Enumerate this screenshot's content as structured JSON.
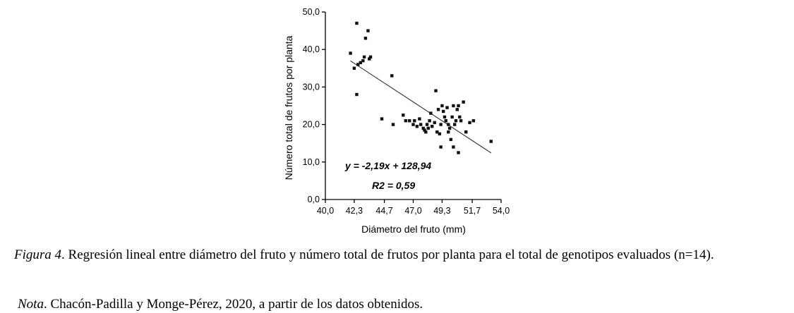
{
  "chart_data": {
    "type": "scatter",
    "xlabel": "Diámetro del fruto (mm)",
    "ylabel": "Número total de frutos por planta",
    "xlim": [
      40.0,
      54.0
    ],
    "ylim": [
      0.0,
      50.0
    ],
    "xticks": [
      "40,0",
      "42,3",
      "44,7",
      "47,0",
      "49,3",
      "51,7",
      "54,0"
    ],
    "xtick_values": [
      40.0,
      42.3,
      44.7,
      47.0,
      49.3,
      51.7,
      54.0
    ],
    "yticks": [
      "0,0",
      "10,0",
      "20,0",
      "30,0",
      "40,0",
      "50,0"
    ],
    "ytick_values": [
      0,
      10,
      20,
      30,
      40,
      50
    ],
    "points": [
      [
        42.0,
        39.0
      ],
      [
        42.3,
        35.0
      ],
      [
        42.5,
        47.0
      ],
      [
        42.5,
        28.0
      ],
      [
        42.6,
        36.0
      ],
      [
        42.8,
        36.5
      ],
      [
        43.0,
        37.0
      ],
      [
        43.1,
        38.0
      ],
      [
        43.2,
        43.0
      ],
      [
        43.4,
        45.0
      ],
      [
        43.5,
        37.5
      ],
      [
        43.6,
        38.0
      ],
      [
        45.3,
        33.0
      ],
      [
        44.5,
        21.5
      ],
      [
        45.4,
        20.0
      ],
      [
        46.2,
        22.5
      ],
      [
        46.4,
        21.0
      ],
      [
        46.7,
        21.0
      ],
      [
        47.0,
        20.0
      ],
      [
        47.1,
        21.0
      ],
      [
        47.3,
        19.5
      ],
      [
        47.5,
        21.5
      ],
      [
        47.6,
        20.0
      ],
      [
        47.8,
        19.0
      ],
      [
        47.9,
        18.5
      ],
      [
        48.0,
        18.0
      ],
      [
        48.1,
        20.0
      ],
      [
        48.2,
        19.0
      ],
      [
        48.3,
        21.0
      ],
      [
        48.4,
        23.0
      ],
      [
        48.5,
        19.5
      ],
      [
        48.7,
        20.5
      ],
      [
        48.9,
        18.0
      ],
      [
        49.0,
        24.0
      ],
      [
        49.1,
        17.5
      ],
      [
        49.2,
        20.0
      ],
      [
        49.3,
        25.0
      ],
      [
        49.4,
        23.5
      ],
      [
        49.5,
        22.0
      ],
      [
        49.6,
        21.0
      ],
      [
        49.7,
        24.5
      ],
      [
        49.8,
        20.0
      ],
      [
        49.9,
        19.0
      ],
      [
        50.0,
        16.0
      ],
      [
        50.1,
        22.0
      ],
      [
        50.2,
        25.0
      ],
      [
        50.3,
        20.0
      ],
      [
        50.4,
        21.0
      ],
      [
        50.5,
        24.0
      ],
      [
        50.6,
        25.0
      ],
      [
        50.7,
        22.0
      ],
      [
        50.8,
        21.0
      ],
      [
        51.0,
        26.0
      ],
      [
        51.2,
        18.0
      ],
      [
        51.5,
        20.5
      ],
      [
        51.8,
        21.0
      ],
      [
        48.8,
        29.0
      ],
      [
        49.8,
        18.0
      ],
      [
        50.2,
        14.0
      ],
      [
        49.2,
        14.0
      ],
      [
        50.6,
        12.5
      ],
      [
        53.2,
        15.5
      ]
    ],
    "trendline": {
      "slope": -2.19,
      "intercept": 128.94,
      "x_range": [
        42.0,
        53.2
      ]
    },
    "annotations": [
      "y = -2,19x + 128,94",
      "R2 = 0,59"
    ],
    "grid": false,
    "legend": "none",
    "colors": {
      "points": "#111111",
      "line": "#333333",
      "axis": "#000000"
    }
  },
  "caption": {
    "label": "Figura 4",
    "text": ". Regresión lineal entre diámetro del fruto y número total de frutos por planta para el total de genotipos evaluados (n=14).",
    "note_label": "Nota",
    "note_text": ". Chacón-Padilla y Monge-Pérez, 2020, a partir de los datos obtenidos."
  }
}
